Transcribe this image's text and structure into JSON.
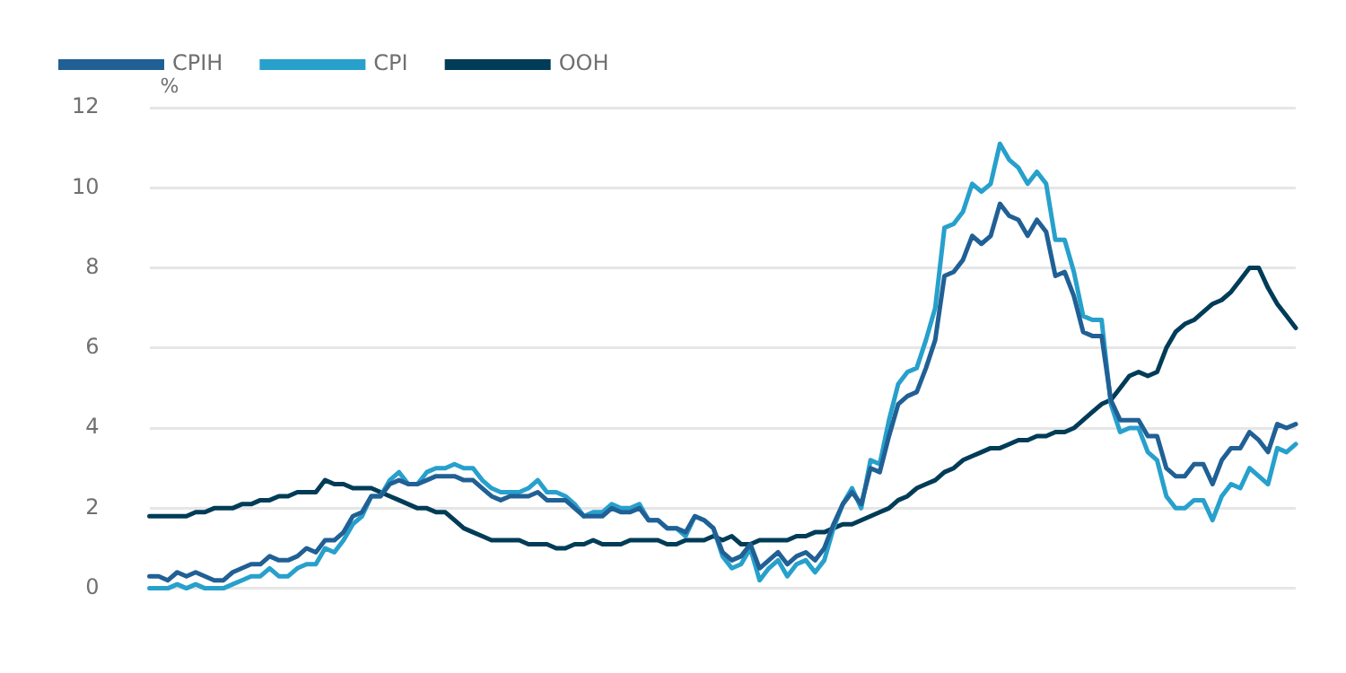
{
  "chart_data": {
    "type": "line",
    "ylabel": "%",
    "categories": [
      null,
      null,
      null,
      null,
      null,
      null,
      null,
      null,
      null,
      null,
      null,
      null,
      null,
      null,
      null,
      null,
      null,
      null,
      null,
      null,
      null,
      null,
      null,
      null,
      null,
      null,
      null,
      null,
      null,
      null,
      null,
      null,
      null,
      null,
      null,
      null,
      null,
      null,
      null,
      null,
      null,
      null,
      null,
      null,
      null,
      null,
      null,
      null,
      null,
      null,
      null,
      null,
      null,
      null,
      null,
      null,
      null,
      null,
      null,
      null,
      null,
      null,
      null,
      null,
      null,
      null,
      null,
      null,
      null,
      null,
      null,
      null,
      null,
      null,
      null,
      null,
      null,
      null,
      null,
      null,
      null,
      null,
      null,
      null,
      null,
      null,
      null,
      null,
      null,
      null,
      null,
      null,
      null,
      null,
      null,
      null,
      null,
      null,
      null,
      null,
      null,
      null,
      null,
      null,
      null,
      null,
      null,
      null,
      null,
      null,
      null,
      null,
      null,
      null,
      null,
      null,
      null,
      null,
      null,
      null,
      null,
      null,
      null,
      null,
      null
    ],
    "series": [
      {
        "name": "CPIH",
        "color": "#206095",
        "values": [
          0.3,
          0.3,
          0.2,
          0.4,
          0.3,
          0.4,
          0.3,
          0.2,
          0.2,
          0.4,
          0.5,
          0.6,
          0.6,
          0.8,
          0.7,
          0.7,
          0.8,
          1.0,
          0.9,
          1.2,
          1.2,
          1.4,
          1.8,
          1.9,
          2.3,
          2.3,
          2.6,
          2.7,
          2.6,
          2.6,
          2.7,
          2.8,
          2.8,
          2.8,
          2.7,
          2.7,
          2.5,
          2.3,
          2.2,
          2.3,
          2.3,
          2.3,
          2.4,
          2.2,
          2.2,
          2.2,
          2.0,
          1.8,
          1.8,
          1.8,
          2.0,
          1.9,
          1.9,
          2.0,
          1.7,
          1.7,
          1.5,
          1.5,
          1.4,
          1.8,
          1.7,
          1.5,
          0.9,
          0.7,
          0.8,
          1.1,
          0.5,
          0.7,
          0.9,
          0.6,
          0.8,
          0.9,
          0.7,
          1.0,
          1.6,
          2.1,
          2.4,
          2.1,
          3.0,
          2.9,
          3.8,
          4.6,
          4.8,
          4.9,
          5.5,
          6.2,
          7.8,
          7.9,
          8.2,
          8.8,
          8.6,
          8.8,
          9.6,
          9.3,
          9.2,
          8.8,
          9.2,
          8.9,
          7.8,
          7.9,
          7.3,
          6.4,
          6.3,
          6.3,
          4.7,
          4.2,
          4.2,
          4.2,
          3.8,
          3.8,
          3.0,
          2.8,
          2.8,
          3.1,
          3.1,
          2.6,
          3.2,
          3.5,
          3.5,
          3.9,
          3.7,
          3.4,
          4.1,
          4.0,
          4.1
        ]
      },
      {
        "name": "CPI",
        "color": "#27a0cc",
        "values": [
          0.0,
          0.0,
          0.0,
          0.1,
          0.0,
          0.1,
          0.0,
          0.0,
          0.0,
          0.1,
          0.2,
          0.3,
          0.3,
          0.5,
          0.3,
          0.3,
          0.5,
          0.6,
          0.6,
          1.0,
          0.9,
          1.2,
          1.6,
          1.8,
          2.3,
          2.3,
          2.7,
          2.9,
          2.6,
          2.6,
          2.9,
          3.0,
          3.0,
          3.1,
          3.0,
          3.0,
          2.7,
          2.5,
          2.4,
          2.4,
          2.4,
          2.5,
          2.7,
          2.4,
          2.4,
          2.3,
          2.1,
          1.8,
          1.9,
          1.9,
          2.1,
          2.0,
          2.0,
          2.1,
          1.7,
          1.7,
          1.5,
          1.5,
          1.3,
          1.8,
          1.7,
          1.5,
          0.8,
          0.5,
          0.6,
          1.0,
          0.2,
          0.5,
          0.7,
          0.3,
          0.6,
          0.7,
          0.4,
          0.7,
          1.5,
          2.1,
          2.5,
          2.0,
          3.2,
          3.1,
          4.2,
          5.1,
          5.4,
          5.5,
          6.2,
          7.0,
          9.0,
          9.1,
          9.4,
          10.1,
          9.9,
          10.1,
          11.1,
          10.7,
          10.5,
          10.1,
          10.4,
          10.1,
          8.7,
          8.7,
          7.9,
          6.8,
          6.7,
          6.7,
          4.6,
          3.9,
          4.0,
          4.0,
          3.4,
          3.2,
          2.3,
          2.0,
          2.0,
          2.2,
          2.2,
          1.7,
          2.3,
          2.6,
          2.5,
          3.0,
          2.8,
          2.6,
          3.5,
          3.4,
          3.6
        ]
      },
      {
        "name": "OOH",
        "color": "#003c57",
        "values": [
          1.8,
          1.8,
          1.8,
          1.8,
          1.8,
          1.9,
          1.9,
          2.0,
          2.0,
          2.0,
          2.1,
          2.1,
          2.2,
          2.2,
          2.3,
          2.3,
          2.4,
          2.4,
          2.4,
          2.7,
          2.6,
          2.6,
          2.5,
          2.5,
          2.5,
          2.4,
          2.3,
          2.2,
          2.1,
          2.0,
          2.0,
          1.9,
          1.9,
          1.7,
          1.5,
          1.4,
          1.3,
          1.2,
          1.2,
          1.2,
          1.2,
          1.1,
          1.1,
          1.1,
          1.0,
          1.0,
          1.1,
          1.1,
          1.2,
          1.1,
          1.1,
          1.1,
          1.2,
          1.2,
          1.2,
          1.2,
          1.1,
          1.1,
          1.2,
          1.2,
          1.2,
          1.3,
          1.2,
          1.3,
          1.1,
          1.1,
          1.2,
          1.2,
          1.2,
          1.2,
          1.3,
          1.3,
          1.4,
          1.4,
          1.5,
          1.6,
          1.6,
          1.7,
          1.8,
          1.9,
          2.0,
          2.2,
          2.3,
          2.5,
          2.6,
          2.7,
          2.9,
          3.0,
          3.2,
          3.3,
          3.4,
          3.5,
          3.5,
          3.6,
          3.7,
          3.7,
          3.8,
          3.8,
          3.9,
          3.9,
          4.0,
          4.2,
          4.4,
          4.6,
          4.7,
          5.0,
          5.3,
          5.4,
          5.3,
          5.4,
          6.0,
          6.4,
          6.6,
          6.7,
          6.9,
          7.1,
          7.2,
          7.4,
          7.7,
          8.0,
          8.0,
          7.5,
          7.1,
          6.8,
          6.5
        ]
      }
    ],
    "ylim": [
      0,
      12
    ],
    "yticks": [
      0,
      2,
      4,
      6,
      8,
      10,
      12
    ],
    "grid": "y",
    "legend": "top left",
    "tick_labels": "y",
    "marker": "none",
    "line_style": "solid"
  }
}
